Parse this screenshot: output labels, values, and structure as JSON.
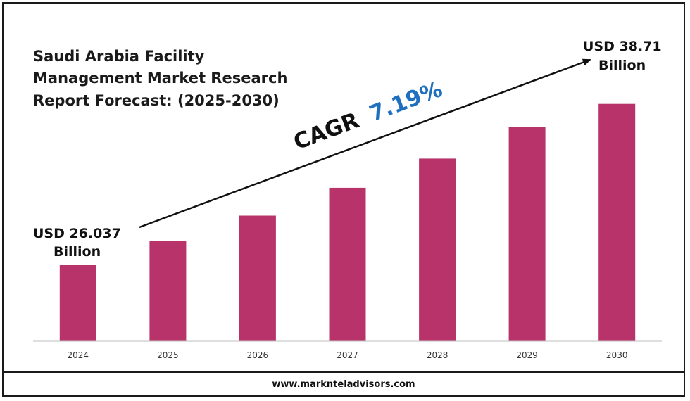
{
  "chart_data": {
    "type": "bar",
    "title_lines": [
      "Saudi Arabia Facility",
      "Management Market Research",
      "Report Forecast: (2025-2030)"
    ],
    "categories": [
      "2024",
      "2025",
      "2026",
      "2027",
      "2028",
      "2029",
      "2030"
    ],
    "values": [
      26.037,
      27.9,
      29.9,
      32.1,
      34.4,
      36.9,
      38.71
    ],
    "ylim": [
      20.0,
      40.8
    ],
    "grid": false,
    "legend": "none",
    "bar_color": "#b8336a",
    "axis_color": "#bfbfbf",
    "annotations": {
      "start_line1": "USD 26.037",
      "start_line2": "Billion",
      "end_line1": "USD 38.71",
      "end_line2": "Billion",
      "cagr_prefix": "CAGR",
      "cagr_value": "7.19%",
      "cagr_prefix_color": "#111111",
      "cagr_value_color": "#1f6fbf"
    }
  },
  "footer": {
    "website": "www.marknteladvisors.com"
  }
}
